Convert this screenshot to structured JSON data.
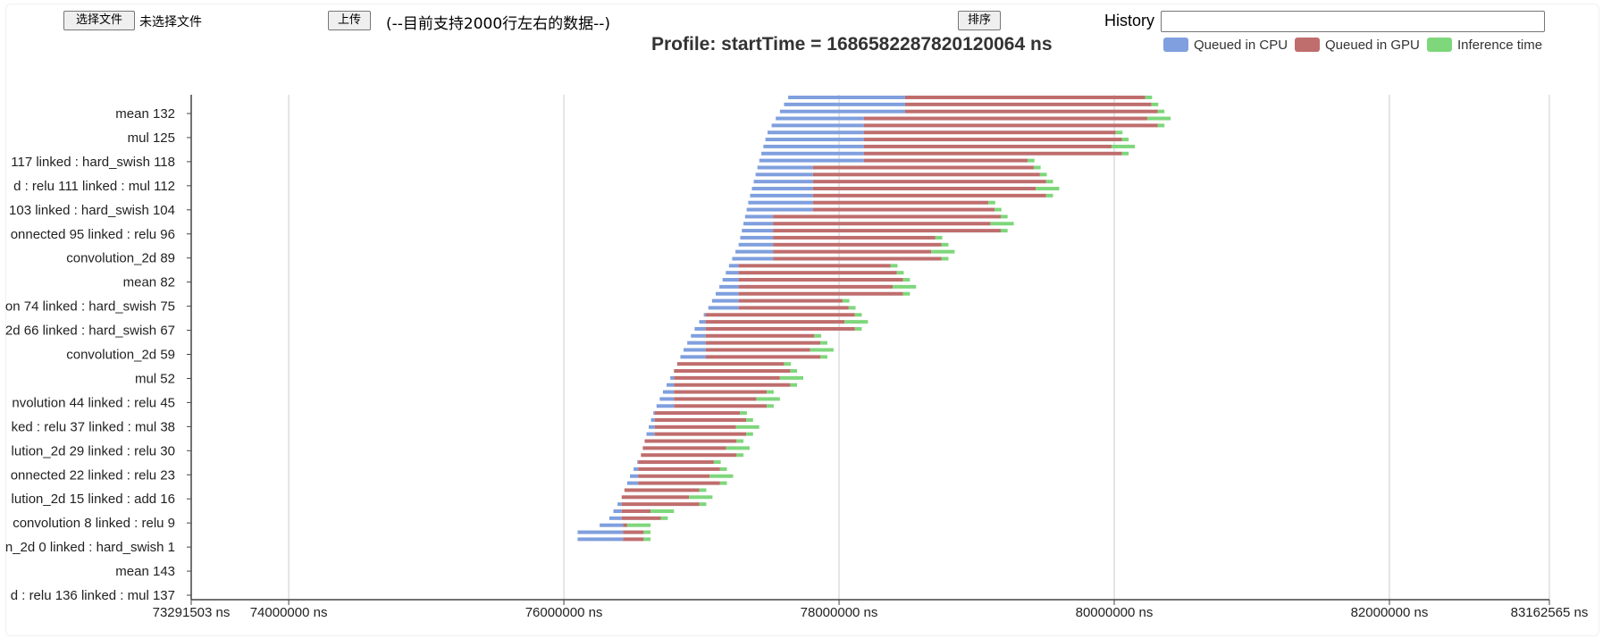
{
  "controls": {
    "choose_file_label": "选择文件",
    "no_file_text": "未选择文件",
    "upload_label": "上传",
    "hint_text": "(--目前支持2000行左右的数据--)",
    "sort_label": "排序",
    "history_label": "History",
    "history_value": ""
  },
  "colors": {
    "cpu": "#7f9fde",
    "gpu": "#bf6d6d",
    "inference": "#7ed77b",
    "axis": "#444444",
    "grid": "#cccccc"
  },
  "chart_data": {
    "type": "bar",
    "orientation": "horizontal-stacked-timeline",
    "title": "Profile: startTime = 1686582287820120064 ns",
    "legend": [
      "Queued in CPU",
      "Queued in GPU",
      "Inference time"
    ],
    "legend_position": "top-right",
    "xlim": [
      73291503,
      83162565
    ],
    "x_unit": "ns",
    "xticks": [
      73291503,
      74000000,
      76000000,
      78000000,
      80000000,
      82000000,
      83162565
    ],
    "xtick_labels": [
      "73291503 ns",
      "74000000 ns",
      "76000000 ns",
      "78000000 ns",
      "80000000 ns",
      "82000000 ns",
      "83162565 ns"
    ],
    "grid": true,
    "ytick_labels": [
      "mean 132",
      "mul 125",
      "117 linked : hard_swish 118",
      "d : relu 111 linked : mul 112",
      "103 linked : hard_swish 104",
      "onnected 95 linked : relu 96",
      "convolution_2d 89",
      "mean 82",
      "on 74 linked : hard_swish 75",
      "2d 66 linked : hard_swish 67",
      "convolution_2d 59",
      "mul 52",
      "nvolution 44 linked : relu 45",
      "ked : relu 37 linked : mul 38",
      "lution_2d 29 linked : relu 30",
      "onnected 22 linked : relu 23",
      "lution_2d 15 linked : add 16",
      "convolution 8 linked : relu 9",
      "n_2d 0 linked : hard_swish 1",
      "mean 143",
      "d : relu 136 linked : mul 137"
    ],
    "rows_count": 64,
    "cpu_start": {
      "knots_row": [
        0,
        5,
        9,
        15,
        21,
        24,
        27,
        30,
        33,
        36,
        39,
        42,
        45,
        48,
        51,
        54,
        57,
        60,
        61,
        62
      ],
      "knots_value": [
        77630000,
        77480000,
        77420000,
        77340000,
        77270000,
        77200000,
        77130000,
        77050000,
        76950000,
        76870000,
        76800000,
        76720000,
        76650000,
        76600000,
        76560000,
        76480000,
        76420000,
        76330000,
        76260000,
        76100000
      ]
    },
    "gpu_start_groups": [
      {
        "rows": [
          0,
          2
        ],
        "value": 78480000
      },
      {
        "rows": [
          3,
          9
        ],
        "value": 78180000
      },
      {
        "rows": [
          10,
          16
        ],
        "value": 77810000
      },
      {
        "rows": [
          17,
          23
        ],
        "value": 77520000
      },
      {
        "rows": [
          24,
          30
        ],
        "value": 77270000
      },
      {
        "rows": [
          31,
          37
        ],
        "value": 77030000
      },
      {
        "rows": [
          38,
          44
        ],
        "value": 76800000
      },
      {
        "rows": [
          45,
          48
        ],
        "value": 76660000
      },
      {
        "rows": [
          49,
          55
        ],
        "value": 76540000
      },
      {
        "rows": [
          56,
          60
        ],
        "value": 76420000
      },
      {
        "rows": [
          61,
          62
        ],
        "value": 76430000
      }
    ],
    "end_group_peaks": [
      {
        "rows": [
          0,
          4
        ],
        "value": 80410000
      },
      {
        "rows": [
          5,
          8
        ],
        "value": 80150000
      },
      {
        "rows": [
          9,
          14
        ],
        "value": 79600000
      },
      {
        "rows": [
          15,
          19
        ],
        "value": 79270000
      },
      {
        "rows": [
          20,
          23
        ],
        "value": 78840000
      },
      {
        "rows": [
          24,
          28
        ],
        "value": 78560000
      },
      {
        "rows": [
          29,
          33
        ],
        "value": 78210000
      },
      {
        "rows": [
          34,
          37
        ],
        "value": 77960000
      },
      {
        "rows": [
          38,
          41
        ],
        "value": 77740000
      },
      {
        "rows": [
          42,
          44
        ],
        "value": 77570000
      },
      {
        "rows": [
          45,
          48
        ],
        "value": 77420000
      },
      {
        "rows": [
          49,
          51
        ],
        "value": 77350000
      },
      {
        "rows": [
          52,
          55
        ],
        "value": 77230000
      },
      {
        "rows": [
          56,
          58
        ],
        "value": 77080000
      },
      {
        "rows": [
          59,
          60
        ],
        "value": 76800000
      },
      {
        "rows": [
          61,
          62
        ],
        "value": 76570000
      }
    ],
    "inference_duration_ns": 50000
  }
}
